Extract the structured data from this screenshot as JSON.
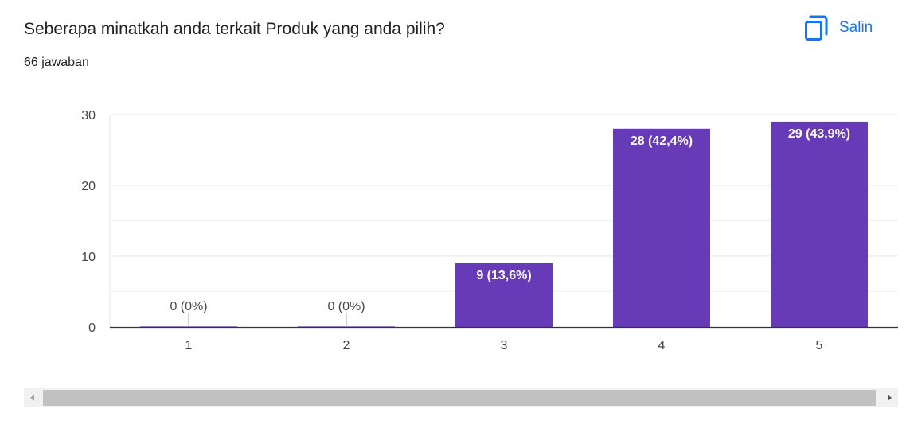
{
  "header": {
    "question": "Seberapa minatkah anda terkait Produk yang anda pilih?",
    "response_count": "66 jawaban",
    "copy_label": "Salin",
    "copy_icon": "copy-icon"
  },
  "colors": {
    "bar": "#673ab7",
    "accent": "#1a73e8",
    "grid": "#e6e6e6",
    "axis": "#333333",
    "label": "#444444"
  },
  "chart_data": {
    "type": "bar",
    "categories": [
      "1",
      "2",
      "3",
      "4",
      "5"
    ],
    "values": [
      0,
      0,
      9,
      28,
      29
    ],
    "data_labels": [
      "0 (0%)",
      "0 (0%)",
      "9 (13,6%)",
      "28 (42,4%)",
      "29 (43,9%)"
    ],
    "yticks": [
      0,
      10,
      20,
      30
    ],
    "ylim": [
      0,
      30
    ],
    "grid": true,
    "title": "",
    "xlabel": "",
    "ylabel": ""
  }
}
